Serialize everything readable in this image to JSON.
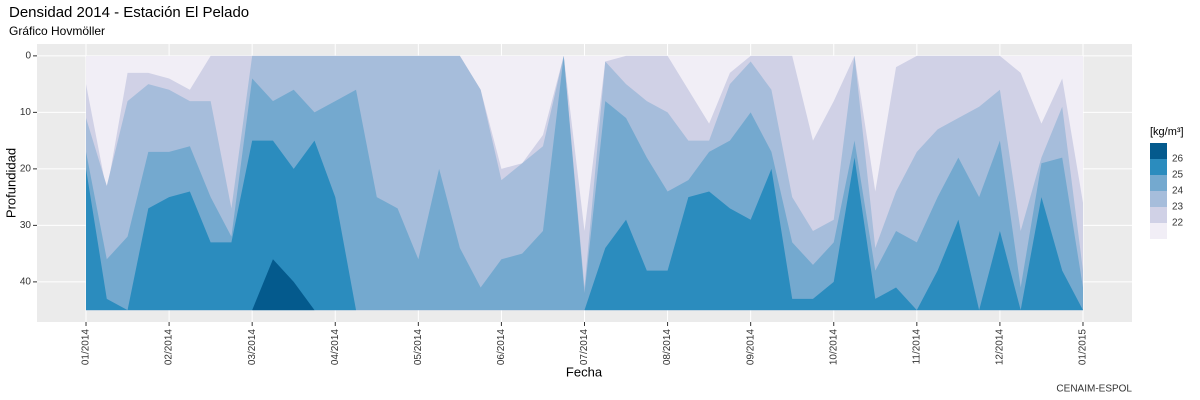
{
  "chart_data": {
    "type": "contour",
    "title": "Densidad 2014 - Estación El Pelado",
    "subtitle": "Gráfico Hovmöller",
    "x_label": "Fecha",
    "y_label": "Profundidad",
    "caption": "CENAIM-ESPOL",
    "legend_title": "[kg/m³]",
    "reverse_y": true,
    "grid": true,
    "xlim": [
      -0.59,
      12.59
    ],
    "ylim": [
      -2.1,
      47.1
    ],
    "xticks": [
      {
        "value": 0,
        "label": "01/2014"
      },
      {
        "value": 1,
        "label": "02/2014"
      },
      {
        "value": 2,
        "label": "03/2014"
      },
      {
        "value": 3,
        "label": "04/2014"
      },
      {
        "value": 4,
        "label": "05/2014"
      },
      {
        "value": 5,
        "label": "06/2014"
      },
      {
        "value": 6,
        "label": "07/2014"
      },
      {
        "value": 7,
        "label": "08/2014"
      },
      {
        "value": 8,
        "label": "09/2014"
      },
      {
        "value": 9,
        "label": "10/2014"
      },
      {
        "value": 10,
        "label": "11/2014"
      },
      {
        "value": 11,
        "label": "12/2014"
      },
      {
        "value": 12,
        "label": "01/2015"
      }
    ],
    "yticks": [
      0,
      10,
      20,
      30,
      40
    ],
    "depth_range": [
      0,
      45
    ],
    "base_color": "#f1eef6",
    "x": [
      0,
      0.25,
      0.5,
      0.75,
      1,
      1.25,
      1.5,
      1.75,
      2,
      2.25,
      2.5,
      2.75,
      3,
      3.25,
      3.5,
      3.75,
      4,
      4.25,
      4.5,
      4.75,
      5,
      5.25,
      5.5,
      5.75,
      6,
      6.25,
      6.5,
      6.75,
      7,
      7.25,
      7.5,
      7.75,
      8,
      8.25,
      8.5,
      8.75,
      9,
      9.25,
      9.5,
      9.75,
      10,
      10.25,
      10.5,
      10.75,
      11,
      11.25,
      11.5,
      11.75,
      12
    ],
    "series": [
      {
        "name": "22",
        "color": "#d0d1e6",
        "values": [
          5,
          24,
          3,
          3,
          4,
          6,
          0,
          0,
          0,
          0,
          0,
          0,
          0,
          0,
          0,
          0,
          0,
          0,
          0,
          6,
          20,
          19,
          14,
          0,
          31,
          1,
          0,
          0,
          0,
          6,
          12,
          3,
          0,
          0,
          0,
          15,
          8,
          0,
          24,
          2,
          0,
          0,
          0,
          0,
          0,
          3,
          12,
          4,
          26
        ]
      },
      {
        "name": "23",
        "color": "#a6bddb",
        "values": [
          11,
          23,
          8,
          5,
          6,
          8,
          8,
          27,
          0,
          0,
          0,
          0,
          0,
          0,
          0,
          0,
          0,
          0,
          0,
          6,
          22,
          19,
          16,
          0,
          41,
          1,
          5,
          8,
          10,
          15,
          15,
          5,
          1,
          6,
          25,
          31,
          29,
          0,
          34,
          24,
          17,
          13,
          11,
          9,
          6,
          31,
          18,
          9,
          38
        ]
      },
      {
        "name": "24",
        "color": "#74a9cf",
        "values": [
          17,
          36,
          32,
          17,
          17,
          16,
          25,
          32,
          4,
          8,
          6,
          10,
          8,
          6,
          25,
          27,
          36,
          20,
          34,
          41,
          36,
          35,
          31,
          0,
          42,
          8,
          11,
          18,
          24,
          22,
          17,
          15,
          10,
          17,
          33,
          37,
          33,
          15,
          38,
          31,
          33,
          25,
          18,
          25,
          15,
          41,
          19,
          18,
          41
        ]
      },
      {
        "name": "25",
        "color": "#2b8cbe",
        "values": [
          20,
          43,
          45,
          27,
          25,
          24,
          33,
          33,
          15,
          15,
          20,
          15,
          25,
          45,
          45,
          45,
          45,
          45,
          45,
          45,
          45,
          45,
          45,
          45,
          45,
          34,
          29,
          38,
          38,
          25,
          24,
          27,
          29,
          20,
          43,
          43,
          40,
          18,
          43,
          41,
          45,
          38,
          29,
          45,
          31,
          45,
          25,
          38,
          45
        ]
      },
      {
        "name": "26",
        "color": "#045a8d",
        "values": [
          45,
          45,
          45,
          45,
          45,
          45,
          45,
          45,
          45,
          36,
          40,
          45,
          45,
          45,
          45,
          45,
          45,
          45,
          45,
          45,
          45,
          45,
          45,
          45,
          45,
          45,
          45,
          45,
          45,
          45,
          45,
          45,
          45,
          45,
          45,
          45,
          45,
          45,
          45,
          45,
          45,
          45,
          45,
          45,
          45,
          45,
          45,
          45,
          45
        ]
      }
    ]
  }
}
